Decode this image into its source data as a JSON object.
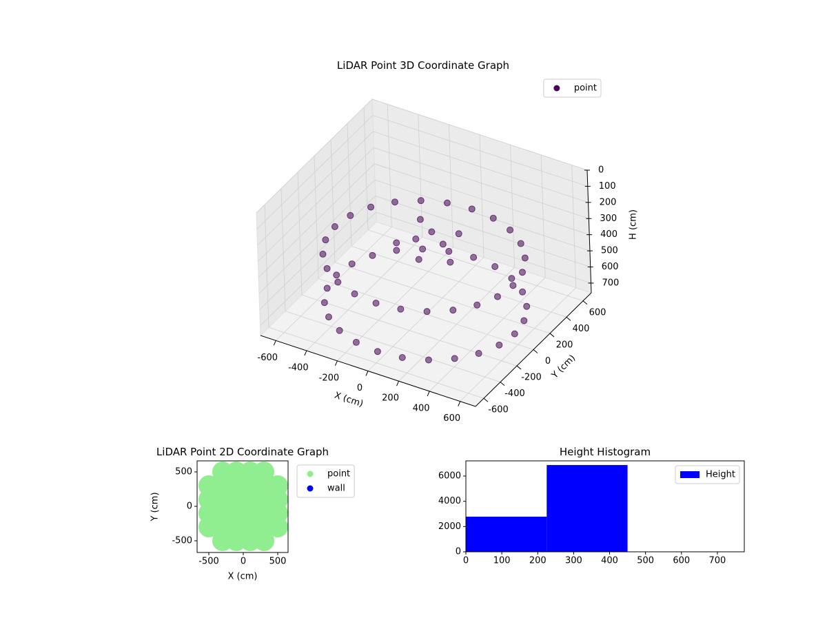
{
  "chart_data": [
    {
      "type": "scatter3d",
      "title": "LiDAR Point 3D Coordinate Graph",
      "xlabel": "X (cm)",
      "ylabel": "Y (cm)",
      "zlabel": "H (cm)",
      "xlim": [
        -700,
        700
      ],
      "ylim": [
        -700,
        700
      ],
      "zlim": [
        760,
        0
      ],
      "xticks": [
        -600,
        -400,
        -200,
        0,
        200,
        400,
        600
      ],
      "yticks": [
        -600,
        -400,
        -200,
        0,
        200,
        400,
        600
      ],
      "zticks": [
        0,
        100,
        200,
        300,
        400,
        500,
        600,
        700
      ],
      "grid": true,
      "legend": "upper right",
      "series": [
        {
          "name": "point",
          "color": "#440154",
          "x": [
            580,
            560,
            502,
            410,
            290,
            150,
            0,
            -150,
            -290,
            -410,
            -502,
            -560,
            -580,
            -560,
            -502,
            -410,
            -290,
            -150,
            0,
            150,
            290,
            410,
            502,
            560,
            580,
            560,
            502,
            410,
            290,
            150,
            0,
            -150,
            -290,
            -410,
            -502,
            -560,
            -580,
            -560,
            -502,
            -410,
            -290,
            -150,
            0,
            150,
            290,
            410,
            502,
            560,
            0,
            100,
            -100,
            200,
            50,
            -50,
            150,
            -150
          ],
          "y": [
            0,
            150,
            290,
            410,
            502,
            560,
            580,
            560,
            502,
            410,
            290,
            150,
            0,
            -150,
            -290,
            -410,
            -502,
            -560,
            -580,
            -560,
            -502,
            -410,
            -290,
            -150,
            0,
            150,
            290,
            410,
            502,
            560,
            580,
            560,
            502,
            410,
            290,
            150,
            0,
            -150,
            -290,
            -410,
            -502,
            -560,
            -580,
            -560,
            -502,
            -410,
            -290,
            -150,
            100,
            50,
            150,
            -50,
            -150,
            0,
            150,
            -50
          ],
          "z": [
            400,
            400,
            400,
            400,
            400,
            400,
            400,
            400,
            400,
            400,
            400,
            400,
            400,
            400,
            400,
            400,
            400,
            400,
            400,
            400,
            400,
            400,
            400,
            400,
            700,
            700,
            700,
            700,
            700,
            700,
            700,
            700,
            700,
            700,
            700,
            700,
            700,
            700,
            700,
            700,
            700,
            700,
            700,
            700,
            700,
            700,
            700,
            700,
            300,
            320,
            280,
            350,
            330,
            310,
            290,
            340
          ]
        }
      ]
    },
    {
      "type": "scatter",
      "title": "LiDAR Point 2D Coordinate Graph",
      "xlabel": "X (cm)",
      "ylabel": "Y (cm)",
      "xlim": [
        -670,
        650
      ],
      "ylim": [
        -670,
        660
      ],
      "xticks": [
        -500,
        0,
        500
      ],
      "yticks": [
        -500,
        0,
        500
      ],
      "legend": "outside",
      "series": [
        {
          "name": "point",
          "color": "#90ee90",
          "x": [
            -300,
            -100,
            100,
            300,
            -500,
            -300,
            -100,
            100,
            300,
            500,
            -500,
            -300,
            -100,
            100,
            300,
            500,
            -500,
            -300,
            -100,
            100,
            300,
            500,
            -500,
            -300,
            -100,
            100,
            300,
            500,
            -300,
            -100,
            100,
            300
          ],
          "y": [
            500,
            500,
            500,
            500,
            300,
            300,
            300,
            300,
            300,
            300,
            100,
            100,
            100,
            100,
            100,
            100,
            -100,
            -100,
            -100,
            -100,
            -100,
            -100,
            -300,
            -300,
            -300,
            -300,
            -300,
            -300,
            -500,
            -500,
            -500,
            -500
          ]
        },
        {
          "name": "wall",
          "color": "#0000ff",
          "x": [],
          "y": []
        }
      ]
    },
    {
      "type": "histogram",
      "title": "Height Histogram",
      "bins": [
        0,
        225,
        450
      ],
      "values": [
        2780,
        6870
      ],
      "name": "Height",
      "color": "#0000ff",
      "xlim": [
        0,
        775
      ],
      "ylim": [
        0,
        7200
      ],
      "xticks": [
        0,
        100,
        200,
        300,
        400,
        500,
        600,
        700
      ],
      "yticks": [
        0,
        2000,
        4000,
        6000
      ],
      "legend": "upper right"
    }
  ]
}
